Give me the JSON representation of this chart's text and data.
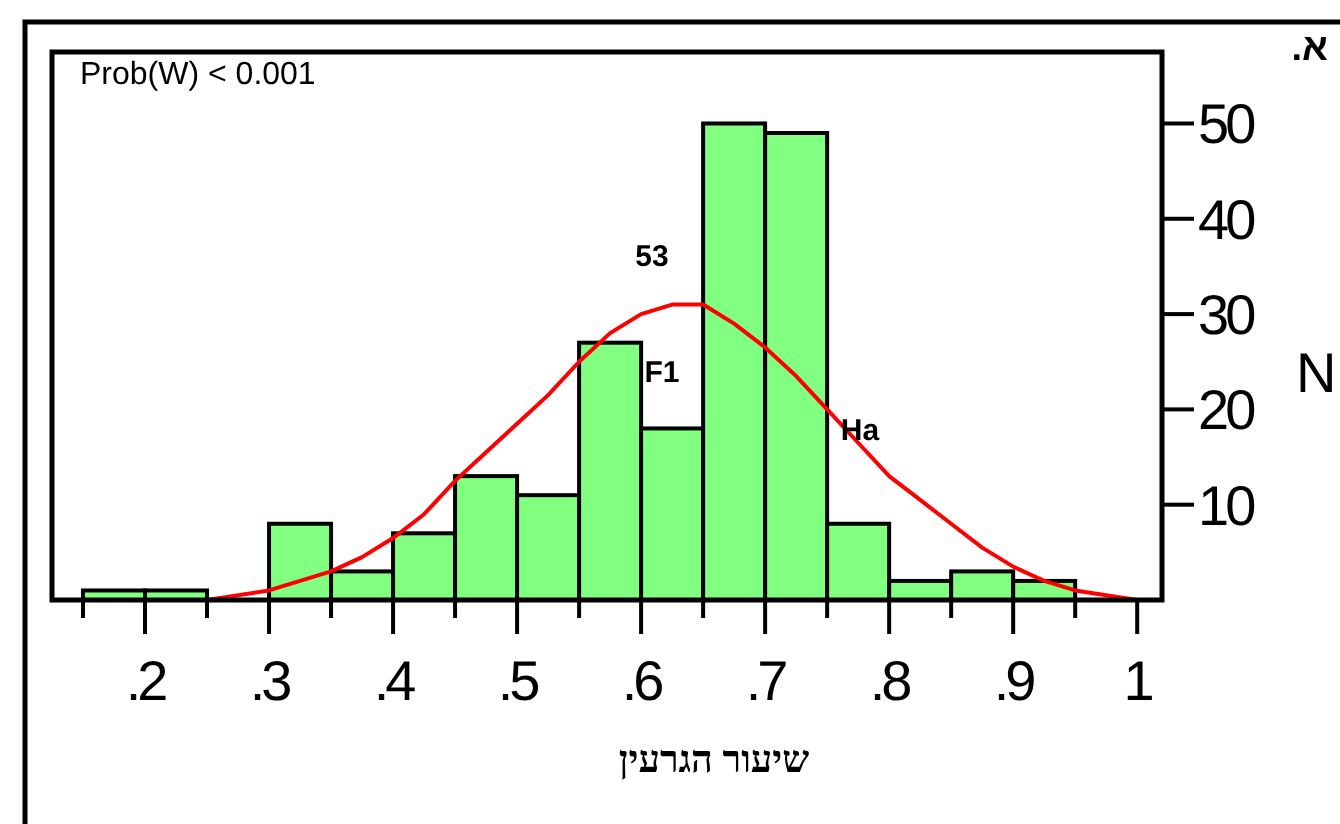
{
  "chart_data": {
    "type": "histogram",
    "title": "א.",
    "xlabel": "שיעור הגרעין",
    "ylabel": "N",
    "bins": [
      0.15,
      0.2,
      0.25,
      0.3,
      0.35,
      0.4,
      0.45,
      0.5,
      0.55,
      0.6,
      0.65,
      0.7,
      0.75,
      0.8,
      0.85,
      0.9,
      0.95
    ],
    "series": [
      {
        "color": "#80ff80",
        "values": [
          1,
          1,
          0,
          8,
          3,
          7,
          13,
          11,
          27,
          18,
          50,
          49,
          8,
          2,
          3,
          2
        ]
      },
      {
        "type": "line",
        "color": "#ff0000",
        "x": [
          0.25,
          0.3,
          0.325,
          0.35,
          0.375,
          0.4,
          0.425,
          0.45,
          0.475,
          0.5,
          0.525,
          0.55,
          0.575,
          0.6,
          0.625,
          0.65,
          0.675,
          0.7,
          0.725,
          0.75,
          0.775,
          0.8,
          0.825,
          0.85,
          0.875,
          0.9,
          0.925,
          0.95,
          0.975,
          1
        ],
        "values": [
          0,
          1,
          2,
          3,
          4.5,
          6.5,
          9,
          12.5,
          15.5,
          18.5,
          21.5,
          25,
          28,
          30,
          31,
          31,
          29,
          26.5,
          23.5,
          20,
          16.5,
          13,
          10.5,
          8,
          5.5,
          3.5,
          2,
          1,
          0.5,
          0
        ]
      }
    ],
    "xlim": [
      0.125,
      1.02
    ],
    "ylim": [
      0,
      57.5
    ],
    "xticks": [
      {
        "value": 0.15,
        "label": null
      },
      {
        "value": 0.2,
        "label": ".2"
      },
      {
        "value": 0.25,
        "label": null
      },
      {
        "value": 0.3,
        "label": ".3"
      },
      {
        "value": 0.35,
        "label": null
      },
      {
        "value": 0.4,
        "label": ".4"
      },
      {
        "value": 0.45,
        "label": null
      },
      {
        "value": 0.5,
        "label": ".5"
      },
      {
        "value": 0.55,
        "label": null
      },
      {
        "value": 0.6,
        "label": ".6"
      },
      {
        "value": 0.65,
        "label": null
      },
      {
        "value": 0.7,
        "label": ".7"
      },
      {
        "value": 0.75,
        "label": null
      },
      {
        "value": 0.8,
        "label": ".8"
      },
      {
        "value": 0.85,
        "label": null
      },
      {
        "value": 0.9,
        "label": ".9"
      },
      {
        "value": 0.95,
        "label": null
      },
      1
    ],
    "yticks": [
      10,
      20,
      30,
      40,
      50
    ],
    "annotations": [
      "Prob(W) < 0.001",
      "53",
      "F1",
      "Ha"
    ]
  }
}
